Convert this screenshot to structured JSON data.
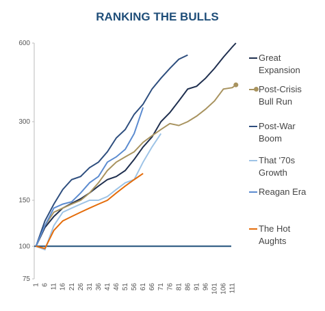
{
  "chart_data": {
    "type": "line",
    "title": "RANKING THE BULLS",
    "x": [
      1,
      6,
      11,
      16,
      21,
      26,
      31,
      36,
      41,
      46,
      51,
      56,
      61,
      66,
      71,
      76,
      81,
      86,
      91,
      96,
      101,
      106,
      111,
      113
    ],
    "xlim": [
      0,
      115
    ],
    "xticks": [
      1,
      6,
      11,
      16,
      21,
      26,
      31,
      36,
      41,
      46,
      51,
      56,
      61,
      66,
      71,
      76,
      81,
      86,
      91,
      96,
      101,
      106,
      111
    ],
    "ylim": [
      75,
      600
    ],
    "yticks": [
      75,
      100,
      150,
      300,
      600
    ],
    "log_scale": true,
    "reference_line": {
      "value": 100,
      "color": "#1f4e79"
    },
    "series": [
      {
        "name": "Great Expansion",
        "color": "#1f2f4f",
        "values": [
          100,
          118,
          130,
          140,
          146,
          152,
          160,
          170,
          180,
          185,
          195,
          215,
          240,
          262,
          300,
          325,
          360,
          400,
          410,
          440,
          480,
          530,
          580,
          600
        ]
      },
      {
        "name": "Post-Crisis Bull Run",
        "color": "#a8935f",
        "end_marker": true,
        "values": [
          100,
          120,
          135,
          140,
          145,
          150,
          160,
          175,
          195,
          210,
          220,
          230,
          250,
          265,
          280,
          295,
          290,
          300,
          315,
          335,
          360,
          400,
          405,
          415
        ]
      },
      {
        "name": "Post-War Boom",
        "color": "#2e4e7e",
        "values": [
          100,
          125,
          145,
          165,
          180,
          185,
          200,
          210,
          230,
          260,
          280,
          320,
          350,
          400,
          440,
          480,
          520,
          540,
          null,
          null,
          null,
          null,
          null,
          null
        ]
      },
      {
        "name": "That '70s Growth",
        "color": "#9dc3e6",
        "values": [
          100,
          97,
          120,
          135,
          140,
          145,
          150,
          150,
          155,
          165,
          175,
          180,
          210,
          240,
          270,
          null,
          null,
          null,
          null,
          null,
          null,
          null,
          null,
          null
        ]
      },
      {
        "name": "Reagan Era",
        "color": "#5b8bd0",
        "values": [
          100,
          120,
          140,
          145,
          148,
          160,
          175,
          185,
          210,
          220,
          235,
          270,
          340,
          null,
          null,
          null,
          null,
          null,
          null,
          null,
          null,
          null,
          null,
          null
        ]
      },
      {
        "name": "The Hot Aughts",
        "color": "#e46c0a",
        "values": [
          100,
          98,
          115,
          125,
          130,
          135,
          140,
          145,
          150,
          160,
          170,
          180,
          190,
          null,
          null,
          null,
          null,
          null,
          null,
          null,
          null,
          null,
          null,
          null
        ]
      }
    ]
  }
}
